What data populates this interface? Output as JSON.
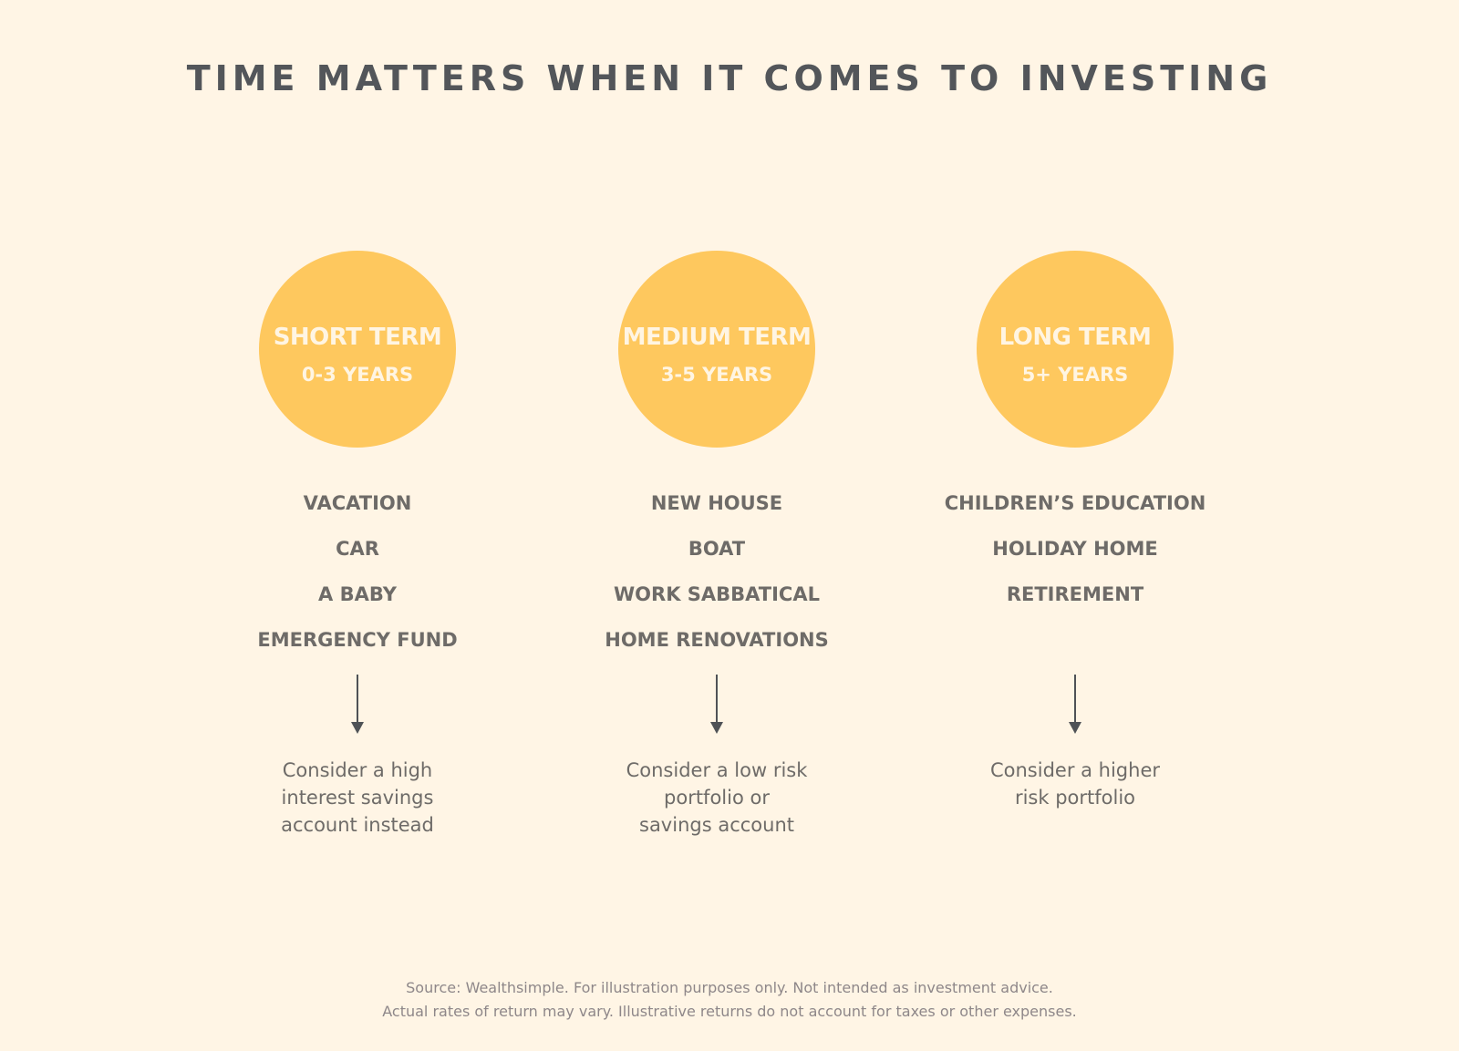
{
  "title": "TIME MATTERS WHEN IT COMES TO INVESTING",
  "colors": {
    "background": "#fff5e5",
    "circle": "#fec85e",
    "text": "#6e6b68",
    "title": "#53565a"
  },
  "columns": [
    {
      "term": "SHORT TERM",
      "years": "0-3 YEARS",
      "items": [
        "VACATION",
        "CAR",
        "A BABY",
        "EMERGENCY FUND"
      ],
      "advice": "Consider a high interest savings account instead"
    },
    {
      "term": "MEDIUM TERM",
      "years": "3-5 YEARS",
      "items": [
        "NEW HOUSE",
        "BOAT",
        "WORK SABBATICAL",
        "HOME RENOVATIONS"
      ],
      "advice": "Consider a low risk portfolio or savings account"
    },
    {
      "term": "LONG TERM",
      "years": "5+ YEARS",
      "items": [
        "CHILDREN’S EDUCATION",
        "HOLIDAY HOME",
        "RETIREMENT"
      ],
      "advice": "Consider a higher risk portfolio"
    }
  ],
  "footer": {
    "line1": "Source: Wealthsimple. For illustration purposes only. Not intended as investment advice.",
    "line2": "Actual rates of return may vary. Illustrative returns do not account for taxes or other expenses."
  }
}
